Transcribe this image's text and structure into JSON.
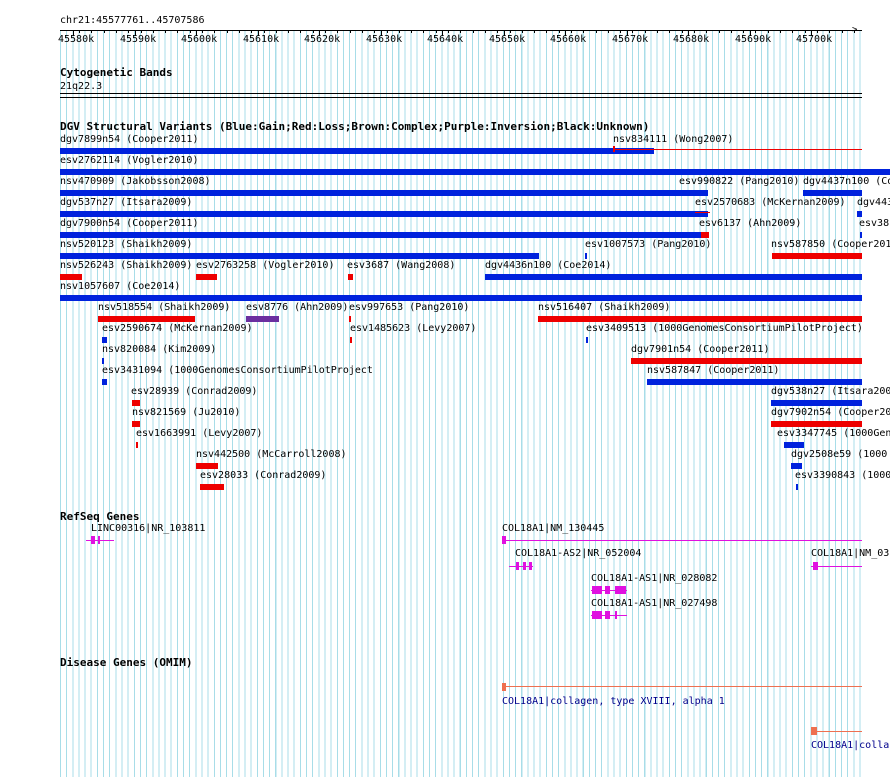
{
  "coord_label": "chr21:45577761..45707586",
  "ruler": {
    "ticks": [
      "45580k",
      "45590k",
      "45600k",
      "45610k",
      "45620k",
      "45630k",
      "45640k",
      "45650k",
      "45660k",
      "45670k",
      "45680k",
      "45690k",
      "45700k"
    ]
  },
  "cyto": {
    "title": "Cytogenetic Bands",
    "band": "21q22.3"
  },
  "dgv": {
    "title": "DGV Structural Variants (Blue:Gain;Red:Loss;Brown:Complex;Purple:Inversion;Black:Unknown)",
    "colors": {
      "gain": "#0022dd",
      "loss": "#ee0000",
      "inversion": "#6a2fa0"
    },
    "labels": [
      "dgv7899n54 (Cooper2011)",
      "nsv834111 (Wong2007)",
      "esv2762114 (Vogler2010)",
      "nsv470909 (Jakobsson2008)",
      "esv990822 (Pang2010)",
      "dgv4437n100 (Co",
      "dgv537n27 (Itsara2009)",
      "esv2570683 (McKernan2009)",
      "dgv443",
      "dgv7900n54 (Cooper2011)",
      "esv6137 (Ahn2009)",
      "esv38",
      "nsv520123 (Shaikh2009)",
      "esv1007573 (Pang2010)",
      "nsv587850 (Cooper201",
      "nsv526243 (Shaikh2009)",
      "esv2763258 (Vogler2010)",
      "esv3687 (Wang2008)",
      "dgv4436n100 (Coe2014)",
      "nsv1057607 (Coe2014)",
      "nsv518554 (Shaikh2009)",
      "esv8776 (Ahn2009)",
      "esv997653 (Pang2010)",
      "nsv516407 (Shaikh2009)",
      "esv2590674 (McKernan2009)",
      "esv1485623 (Levy2007)",
      "esv3409513 (1000GenomesConsortiumPilotProject)",
      "nsv820084 (Kim2009)",
      "dgv7901n54 (Cooper2011)",
      "esv3431094 (1000GenomesConsortiumPilotProject",
      "nsv587847 (Cooper2011)",
      "esv28939 (Conrad2009)",
      "dgv538n27 (Itsara200",
      "nsv821569 (Ju2010)",
      "dgv7902n54 (Cooper20",
      "esv1663991 (Levy2007)",
      "esv3347745 (1000Gen",
      "nsv442500 (McCarroll2008)",
      "dgv2508e59 (1000",
      "esv28033 (Conrad2009)",
      "esv3390843 (1000"
    ]
  },
  "refseq": {
    "title": "RefSeq Genes",
    "color": "#e010e0",
    "labels": [
      "LINC00316|NR_103811",
      "COL18A1|NM_130445",
      "COL18A1-AS2|NR_052004",
      "COL18A1|NM_03",
      "COL18A1-AS1|NR_028082",
      "COL18A1-AS1|NR_027498"
    ]
  },
  "omim": {
    "title": "Disease Genes (OMIM)",
    "color": "#ee7050",
    "labels": [
      "COL18A1|collagen, type XVIII, alpha 1",
      "COL18A1|colla"
    ]
  }
}
